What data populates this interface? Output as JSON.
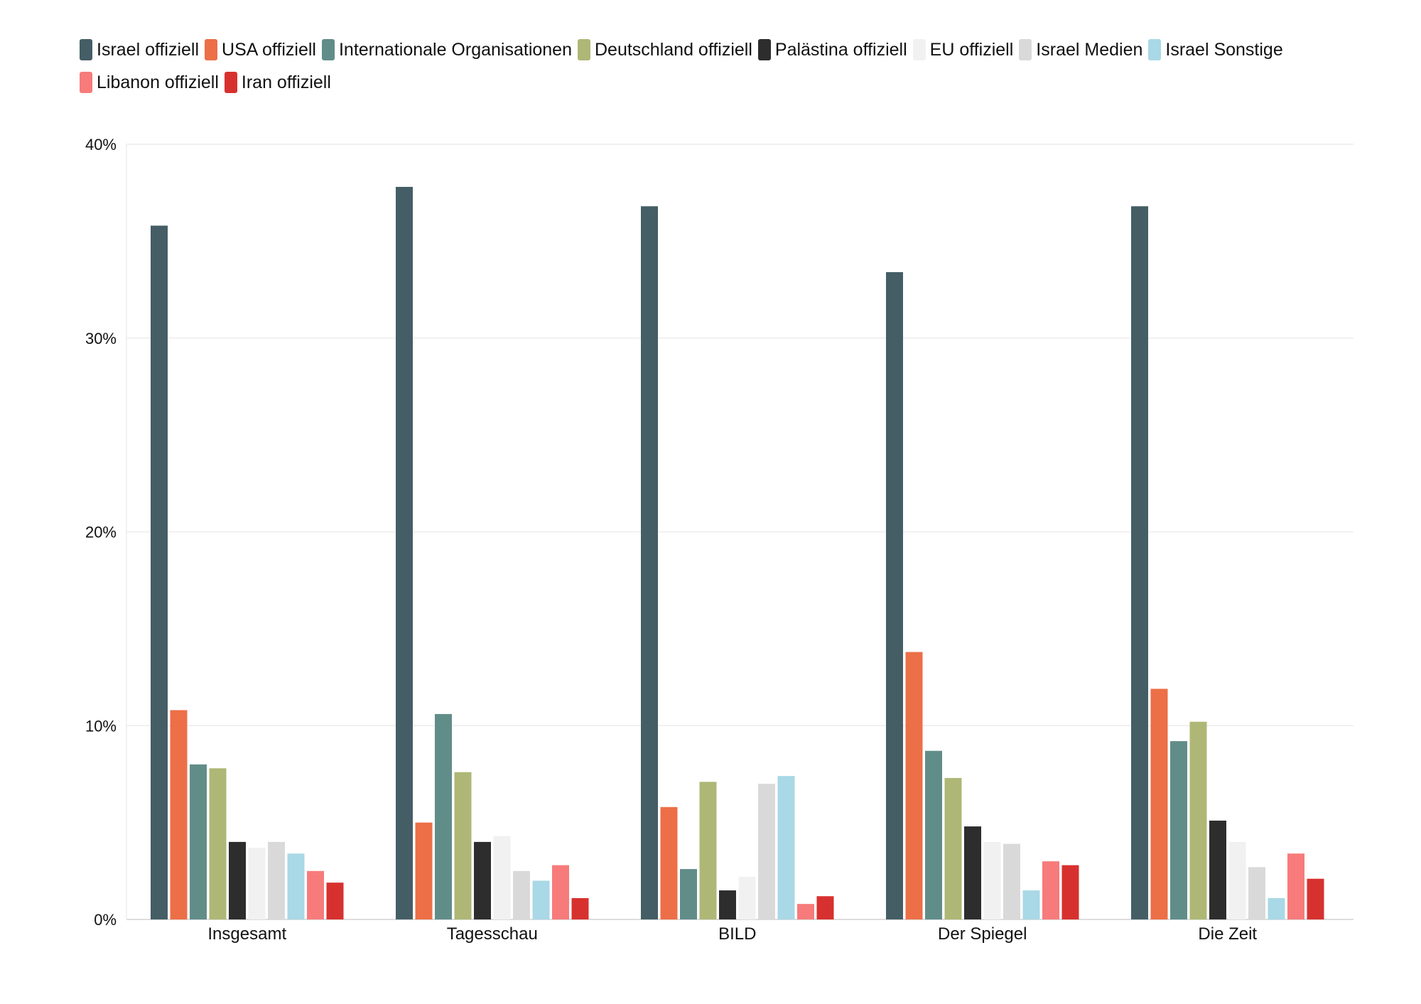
{
  "chart_data": {
    "type": "bar",
    "title": "",
    "xlabel": "",
    "ylabel": "",
    "ylim": [
      0,
      40
    ],
    "yticks": [
      0,
      10,
      20,
      30,
      40
    ],
    "ytick_labels": [
      "0%",
      "10%",
      "20%",
      "30%",
      "40%"
    ],
    "grid": true,
    "legend_position": "top",
    "categories": [
      "Insgesamt",
      "Tagesschau",
      "BILD",
      "Der Spiegel",
      "Die Zeit"
    ],
    "series": [
      {
        "name": "Israel offiziell",
        "color": "#455e66",
        "values": [
          35.8,
          37.8,
          36.8,
          33.4,
          36.8
        ]
      },
      {
        "name": "USA offiziell",
        "color": "#ec6f47",
        "values": [
          10.8,
          5.0,
          5.8,
          13.8,
          11.9
        ]
      },
      {
        "name": "Internationale Organisationen",
        "color": "#618d89",
        "values": [
          8.0,
          10.6,
          2.6,
          8.7,
          9.2
        ]
      },
      {
        "name": "Deutschland offiziell",
        "color": "#aeb776",
        "values": [
          7.8,
          7.6,
          7.1,
          7.3,
          10.2
        ]
      },
      {
        "name": "Palästina offiziell",
        "color": "#2d2d2d",
        "values": [
          4.0,
          4.0,
          1.5,
          4.8,
          5.1
        ]
      },
      {
        "name": "EU offiziell",
        "color": "#f1f1f1",
        "values": [
          3.7,
          4.3,
          2.2,
          4.0,
          4.0
        ]
      },
      {
        "name": "Israel Medien",
        "color": "#d9d9d9",
        "values": [
          4.0,
          2.5,
          7.0,
          3.9,
          2.7
        ]
      },
      {
        "name": "Israel Sonstige",
        "color": "#a9d8e6",
        "values": [
          3.4,
          2.0,
          7.4,
          1.5,
          1.1
        ]
      },
      {
        "name": "Libanon offiziell",
        "color": "#f77b7b",
        "values": [
          2.5,
          2.8,
          0.8,
          3.0,
          3.4
        ]
      },
      {
        "name": "Iran offiziell",
        "color": "#d7312f",
        "values": [
          1.9,
          1.1,
          1.2,
          2.8,
          2.1
        ]
      }
    ]
  }
}
